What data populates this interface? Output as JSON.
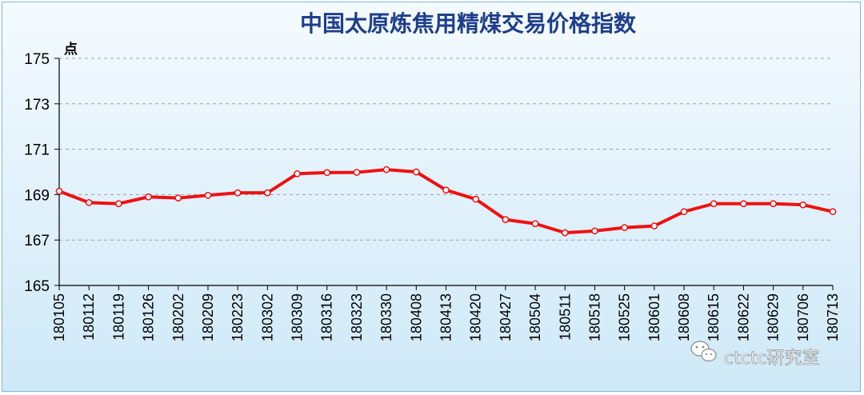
{
  "chart_data": {
    "type": "line",
    "title": "中国太原炼焦用精煤交易价格指数",
    "unit_label": "点",
    "categories": [
      "180105",
      "180112",
      "180119",
      "180126",
      "180202",
      "180209",
      "180223",
      "180302",
      "180309",
      "180316",
      "180323",
      "180330",
      "180408",
      "180413",
      "180420",
      "180427",
      "180504",
      "180511",
      "180518",
      "180525",
      "180601",
      "180608",
      "180615",
      "180622",
      "180629",
      "180706",
      "180713"
    ],
    "series": [
      {
        "values": [
          169.15,
          168.65,
          168.6,
          168.9,
          168.85,
          168.97,
          169.08,
          169.08,
          169.92,
          169.97,
          169.98,
          170.1,
          170.0,
          169.2,
          168.8,
          167.9,
          167.72,
          167.32,
          167.4,
          167.55,
          167.62,
          168.25,
          168.6,
          168.6,
          168.6,
          168.55,
          168.25
        ],
        "color": "#ee1111"
      }
    ],
    "ylim": [
      165,
      175
    ],
    "yticks": [
      165,
      167,
      169,
      171,
      173,
      175
    ],
    "grid": "horizontal-dashed",
    "legend": "none"
  },
  "watermark": {
    "text": "ctctc研究室"
  }
}
